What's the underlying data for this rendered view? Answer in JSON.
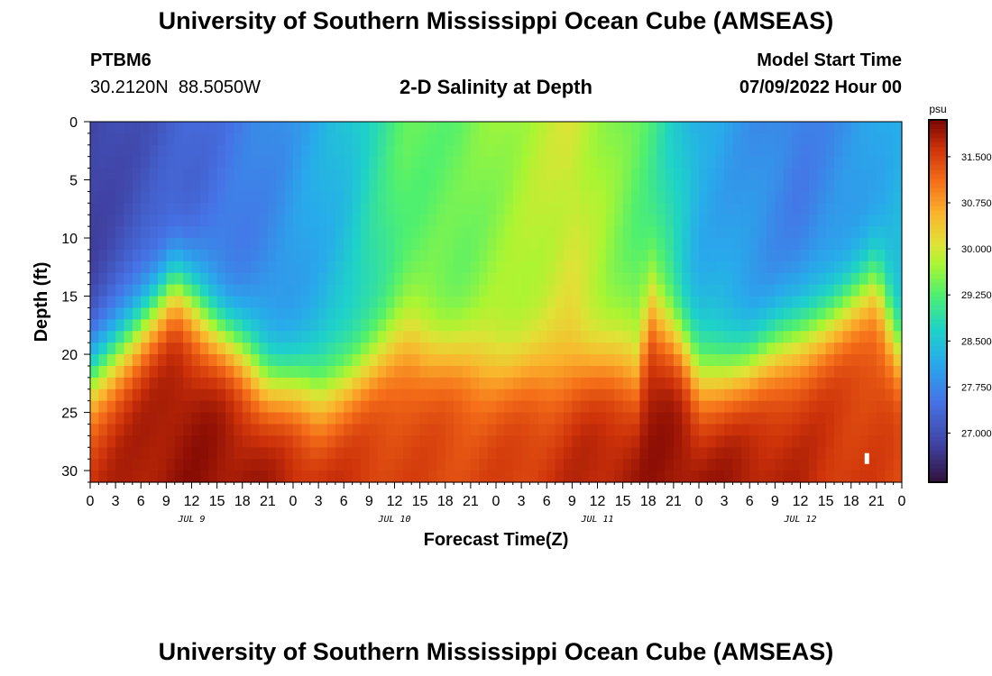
{
  "header": {
    "title": "University of Southern Mississippi Ocean Cube (AMSEAS)",
    "station_id": "PTBM6",
    "station_coords": "30.2120N  88.5050W",
    "plot_title": "2-D Salinity at Depth",
    "start_label": "Model Start Time",
    "start_value": "07/09/2022 Hour 00"
  },
  "footer": {
    "title": "University of Southern Mississippi Ocean Cube (AMSEAS)"
  },
  "chart_data": {
    "type": "heatmap",
    "title": "2-D Salinity at Depth",
    "xlabel": "Forecast Time(Z)",
    "ylabel": "Depth (ft)",
    "x_range_hours": [
      0,
      96
    ],
    "ylim": [
      0,
      31
    ],
    "y_ticks": [
      0,
      5,
      10,
      15,
      20,
      25,
      30
    ],
    "x_tick_hours": [
      0,
      3,
      6,
      9,
      12,
      15,
      18,
      21,
      24,
      27,
      30,
      33,
      36,
      39,
      42,
      45,
      48,
      51,
      54,
      57,
      60,
      63,
      66,
      69,
      72,
      75,
      78,
      81,
      84,
      87,
      90,
      93,
      96
    ],
    "x_tick_labels": [
      "0",
      "3",
      "6",
      "9",
      "12",
      "15",
      "18",
      "21",
      "0",
      "3",
      "6",
      "9",
      "12",
      "15",
      "18",
      "21",
      "0",
      "3",
      "6",
      "9",
      "12",
      "15",
      "18",
      "21",
      "0",
      "3",
      "6",
      "9",
      "12",
      "15",
      "18",
      "21",
      "0"
    ],
    "day_labels": [
      {
        "hour": 12,
        "label": "JUL 9"
      },
      {
        "hour": 36,
        "label": "JUL 10"
      },
      {
        "hour": 60,
        "label": "JUL 11"
      },
      {
        "hour": 84,
        "label": "JUL 12"
      }
    ],
    "colorbar": {
      "unit": "psu",
      "min": 26.2,
      "max": 32.1,
      "ticks": [
        31.5,
        30.75,
        30.0,
        29.25,
        28.5,
        27.75,
        27.0
      ],
      "tick_labels": [
        "31.500",
        "30.750",
        "30.000",
        "29.250",
        "28.500",
        "27.750",
        "27.000"
      ]
    },
    "field_summary": {
      "surface_salinity_psu": [
        {
          "hour": 0,
          "value": 26.8
        },
        {
          "hour": 10,
          "value": 27.2
        },
        {
          "hour": 22,
          "value": 27.8
        },
        {
          "hour": 30,
          "value": 28.4
        },
        {
          "hour": 37,
          "value": 29.3
        },
        {
          "hour": 44,
          "value": 29.4
        },
        {
          "hour": 48,
          "value": 29.6
        },
        {
          "hour": 57,
          "value": 30.0
        },
        {
          "hour": 66,
          "value": 29.2
        },
        {
          "hour": 72,
          "value": 28.2
        },
        {
          "hour": 84,
          "value": 27.6
        },
        {
          "hour": 92,
          "value": 28.0
        },
        {
          "hour": 96,
          "value": 28.3
        }
      ],
      "halocline_depth_ft": [
        {
          "hour": 0,
          "value": 22
        },
        {
          "hour": 10,
          "value": 14
        },
        {
          "hour": 21,
          "value": 22
        },
        {
          "hour": 27,
          "value": 23.5
        },
        {
          "hour": 38,
          "value": 19
        },
        {
          "hour": 46,
          "value": 21
        },
        {
          "hour": 54,
          "value": 22
        },
        {
          "hour": 58,
          "value": 21
        },
        {
          "hour": 65,
          "value": 21.5
        },
        {
          "hour": 66,
          "value": 16
        },
        {
          "hour": 69,
          "value": 18
        },
        {
          "hour": 72,
          "value": 22
        },
        {
          "hour": 78,
          "value": 21
        },
        {
          "hour": 88,
          "value": 16.5
        },
        {
          "hour": 93,
          "value": 14
        },
        {
          "hour": 96,
          "value": 20
        }
      ],
      "bottom_salinity_psu": 31.7
    }
  }
}
